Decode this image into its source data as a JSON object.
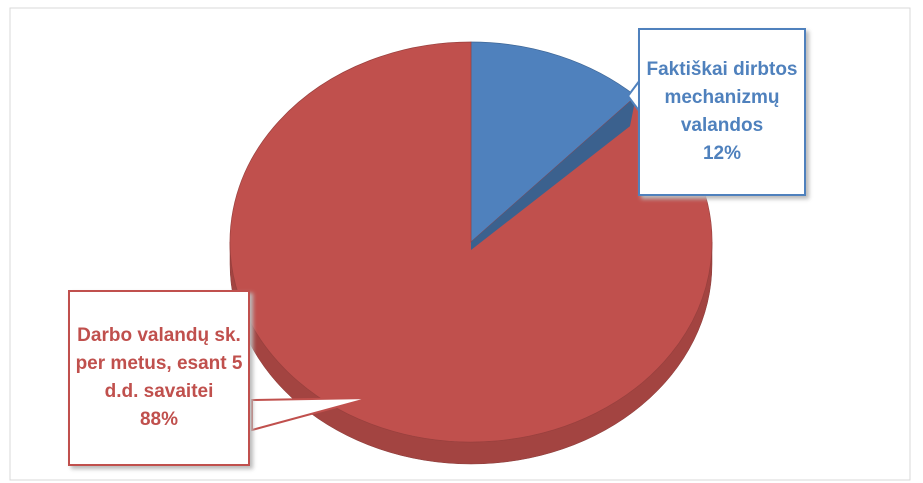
{
  "chart_data": {
    "type": "pie",
    "categories": [
      "Faktiškai dirbtos mechanizmų valandos",
      "Darbo valandų sk. per metus, esant 5 d.d. savaitei"
    ],
    "values": [
      12,
      88
    ],
    "value_labels": [
      "12%",
      "88%"
    ],
    "colors": [
      "#4f81bd",
      "#c0504d"
    ]
  }
}
